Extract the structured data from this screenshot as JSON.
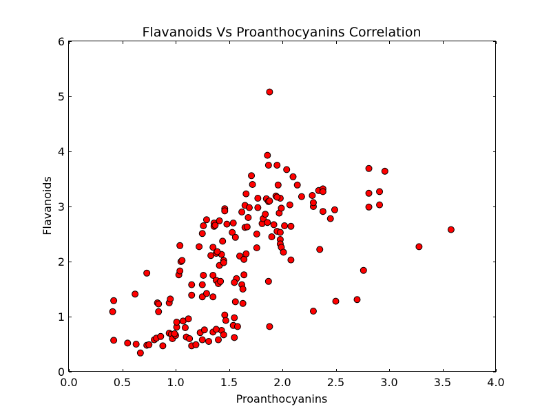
{
  "chart_data": {
    "type": "scatter",
    "title": "Flavanoids Vs Proanthocyanins Correlation",
    "xlabel": "Proanthocyanins",
    "ylabel": "Flavanoids",
    "xlim": [
      0.0,
      4.0
    ],
    "ylim": [
      0,
      6
    ],
    "xticks": [
      "0.0",
      "0.5",
      "1.0",
      "1.5",
      "2.0",
      "2.5",
      "3.0",
      "3.5",
      "4.0"
    ],
    "yticks": [
      "0",
      "1",
      "2",
      "3",
      "4",
      "5",
      "6"
    ],
    "grid": false,
    "marker_color": "#ff0000",
    "marker_edge_color": "#000000",
    "x": [
      0.41,
      0.42,
      0.42,
      0.55,
      0.62,
      0.63,
      0.67,
      0.73,
      0.73,
      0.75,
      0.8,
      0.82,
      0.83,
      0.84,
      0.84,
      0.86,
      0.88,
      0.94,
      0.94,
      0.95,
      0.96,
      0.97,
      1.0,
      1.01,
      1.03,
      1.04,
      1.05,
      1.04,
      1.06,
      1.07,
      1.1,
      1.12,
      1.13,
      1.15,
      1.15,
      1.15,
      1.22,
      1.23,
      1.25,
      1.25,
      1.25,
      1.25,
      1.26,
      1.27,
      1.29,
      1.31,
      1.33,
      1.35,
      1.35,
      1.35,
      1.35,
      1.36,
      1.36,
      1.37,
      1.38,
      1.38,
      1.4,
      1.4,
      1.41,
      1.42,
      1.43,
      1.43,
      1.44,
      1.45,
      1.45,
      1.45,
      1.46,
      1.46,
      1.46,
      1.47,
      1.48,
      1.53,
      1.54,
      1.55,
      1.55,
      1.56,
      1.56,
      1.57,
      1.58,
      1.6,
      1.62,
      1.62,
      1.63,
      1.63,
      1.64,
      1.64,
      1.65,
      1.65,
      1.66,
      1.66,
      1.67,
      1.68,
      1.69,
      1.71,
      1.72,
      1.76,
      1.76,
      1.77,
      1.77,
      1.81,
      1.82,
      1.84,
      1.85,
      1.86,
      1.87,
      1.87,
      1.87,
      1.88,
      1.88,
      1.9,
      1.92,
      1.94,
      1.95,
      1.95,
      1.96,
      1.97,
      1.98,
      1.98,
      1.98,
      1.99,
      1.99,
      2.01,
      2.02,
      2.04,
      2.07,
      2.08,
      2.08,
      2.1,
      2.14,
      2.18,
      2.28,
      2.29,
      2.29,
      2.29,
      2.34,
      2.35,
      2.38,
      2.38,
      2.38,
      2.45,
      2.49,
      2.5,
      2.7,
      2.76,
      2.81,
      2.81,
      2.81,
      2.91,
      2.91,
      2.96,
      3.28,
      3.58,
      1.86,
      1.88,
      1.95,
      1.98,
      1.55,
      1.54,
      1.41,
      1.38,
      1.29,
      1.39,
      1.26,
      1.19,
      1.09,
      1.01,
      0.99
    ],
    "y": [
      1.09,
      1.29,
      0.57,
      0.52,
      1.41,
      0.5,
      0.34,
      1.79,
      0.48,
      0.49,
      0.58,
      0.61,
      1.25,
      1.23,
      1.09,
      0.64,
      0.47,
      0.7,
      1.25,
      1.32,
      0.68,
      0.6,
      0.66,
      0.81,
      1.76,
      1.83,
      2.0,
      2.29,
      2.02,
      0.92,
      0.63,
      0.96,
      0.6,
      1.58,
      1.39,
      0.47,
      2.27,
      0.71,
      2.51,
      1.58,
      1.36,
      0.58,
      2.65,
      0.76,
      2.76,
      0.55,
      2.11,
      2.26,
      1.75,
      1.36,
      0.72,
      2.7,
      2.64,
      2.66,
      2.15,
      1.66,
      1.6,
      0.58,
      1.93,
      1.64,
      2.13,
      0.75,
      2.37,
      2.02,
      1.98,
      0.67,
      2.96,
      2.92,
      1.03,
      0.93,
      2.68,
      2.53,
      0.84,
      0.98,
      0.62,
      1.27,
      2.44,
      1.69,
      0.82,
      2.1,
      2.9,
      1.58,
      1.5,
      1.24,
      2.04,
      1.76,
      3.02,
      2.62,
      3.23,
      2.14,
      2.63,
      2.8,
      2.98,
      3.56,
      3.4,
      2.5,
      2.25,
      2.98,
      3.15,
      2.69,
      2.78,
      2.86,
      3.14,
      3.93,
      3.75,
      3.09,
      1.64,
      0.82,
      5.08,
      2.45,
      2.67,
      3.19,
      2.55,
      3.75,
      3.39,
      2.88,
      3.15,
      2.4,
      2.32,
      2.97,
      2.26,
      2.17,
      2.65,
      3.67,
      3.03,
      2.64,
      2.03,
      3.54,
      3.39,
      3.18,
      3.2,
      3.0,
      3.07,
      1.1,
      3.29,
      2.22,
      3.32,
      3.27,
      2.91,
      2.78,
      2.94,
      1.28,
      1.31,
      1.84,
      3.69,
      3.24,
      2.99,
      3.27,
      3.03,
      3.64,
      2.27,
      2.58,
      2.71,
      3.1,
      3.17,
      2.53,
      1.62,
      2.7,
      2.74,
      0.77,
      1.42,
      2.18,
      1.75,
      0.49,
      0.8,
      0.9,
      0.69
    ]
  }
}
